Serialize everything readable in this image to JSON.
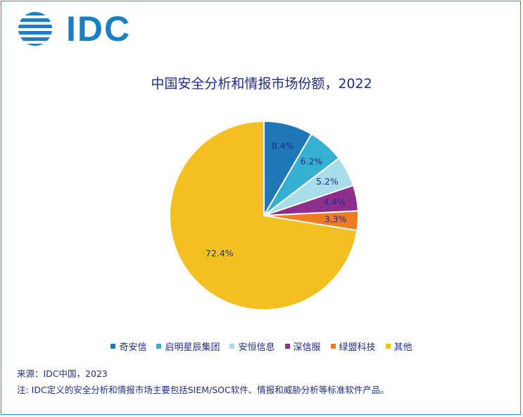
{
  "brand": {
    "name": "IDC",
    "color": "#1b7fc4"
  },
  "chart_data": {
    "type": "pie",
    "title": "中国安全分析和情报市场份额，2022",
    "categories": [
      "奇安信",
      "启明星辰集团",
      "安恒信息",
      "深信服",
      "绿盟科技",
      "其他"
    ],
    "values": [
      8.4,
      6.2,
      5.2,
      4.4,
      3.3,
      72.4
    ],
    "value_labels": [
      "8.4%",
      "6.2%",
      "5.2%",
      "4.4%",
      "3.3%",
      "72.4%"
    ],
    "colors": [
      "#1f77b8",
      "#36b0d0",
      "#a7dce9",
      "#8e2f8d",
      "#ef7b22",
      "#f4c021"
    ],
    "label_colors": [
      "#1f2d8c",
      "#1f2d8c",
      "#1f2d8c",
      "#1f2d8c",
      "#1f2d8c",
      "#1f2d8c"
    ],
    "start_angle_deg": 0,
    "direction": "clockwise",
    "legend_position": "bottom"
  },
  "footer": {
    "source": "来源：IDC中国，2023",
    "note": "注: IDC定义的安全分析和情报市场主要包括SIEM/SOC软件、情报和威胁分析等标准软件产品。"
  }
}
